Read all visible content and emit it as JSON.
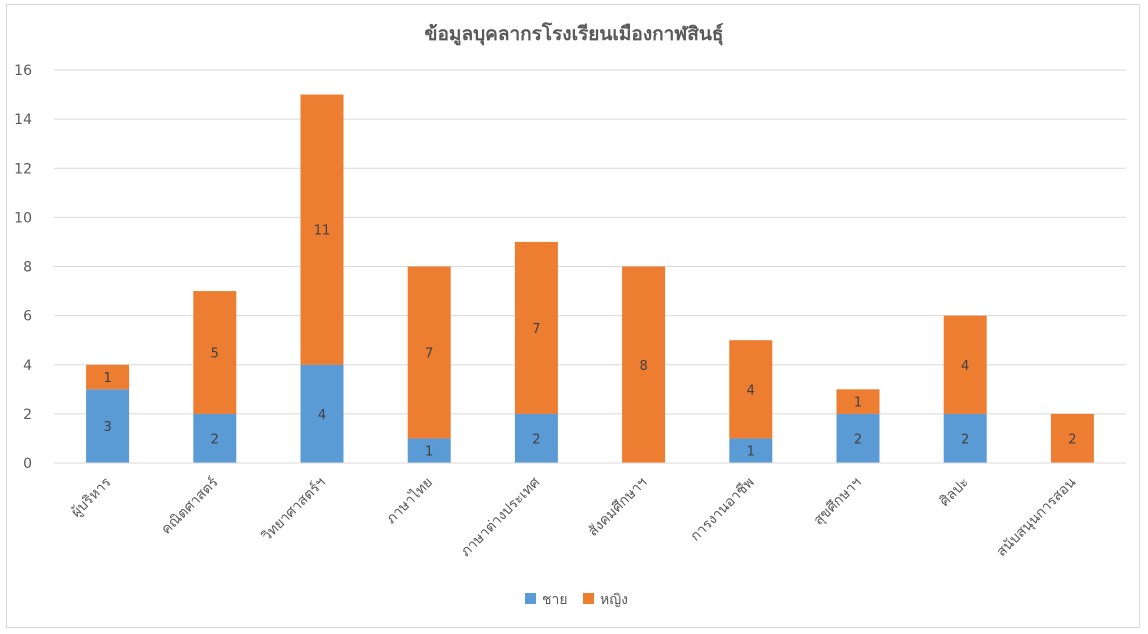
{
  "chart_data": {
    "type": "bar",
    "stacked": true,
    "title": "ข้อมูลบุคลากรโรงเรียนเมืองกาฬสินธุ์",
    "xlabel": "",
    "ylabel": "",
    "categories": [
      "ผู้บริหาร",
      "คณิตศาสตร์",
      "วิทยาศาสตร์ฯ",
      "ภาษาไทย",
      "ภาษาต่างประเทศ",
      "สังคมศึกษาฯ",
      "การงานอาชีพ",
      "สุขศึกษาฯ",
      "ศิลปะ",
      "สนับสนุนการสอน"
    ],
    "series": [
      {
        "name": "ชาย",
        "values": [
          3,
          2,
          4,
          1,
          2,
          0,
          1,
          2,
          2,
          0
        ],
        "color": "#5b9bd5"
      },
      {
        "name": "หญิง",
        "values": [
          1,
          5,
          11,
          7,
          7,
          8,
          4,
          1,
          4,
          2
        ],
        "color": "#ed7d31"
      }
    ],
    "ylim": [
      0,
      16
    ],
    "yticks": [
      0,
      2,
      4,
      6,
      8,
      10,
      12,
      14,
      16
    ],
    "grid": true,
    "legend": "bottom"
  }
}
